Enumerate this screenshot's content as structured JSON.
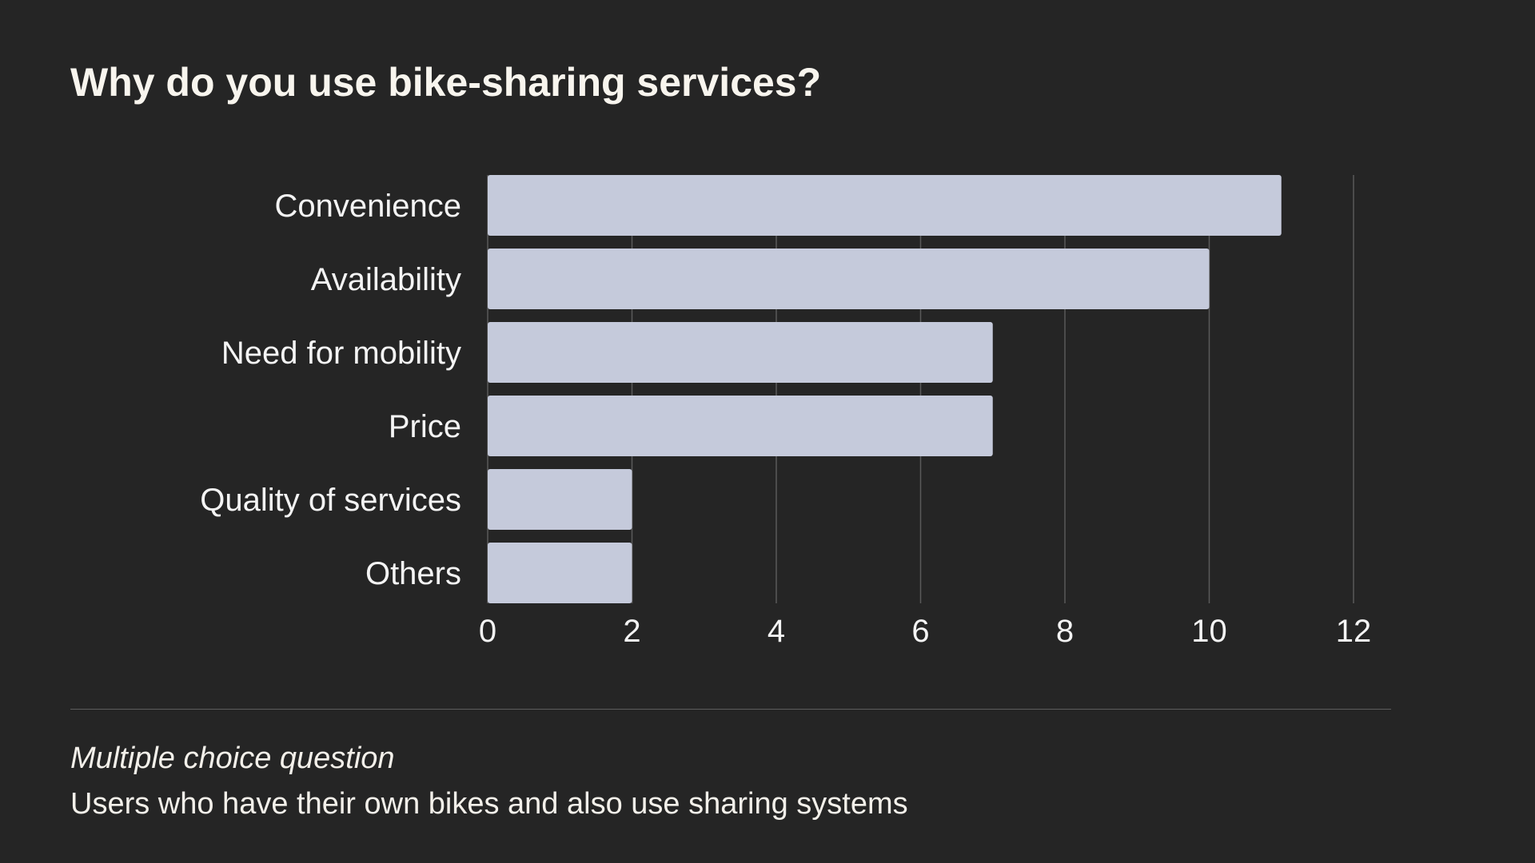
{
  "title": "Why do you use bike-sharing services?",
  "colors": {
    "background": "#252525",
    "bar": "#c5cadb",
    "grid": "#5a5a5a",
    "text": "#f4f4f4"
  },
  "chart_data": {
    "type": "bar",
    "orientation": "horizontal",
    "categories": [
      "Convenience",
      "Availability",
      "Need for mobility",
      "Price",
      "Quality of services",
      "Others"
    ],
    "values": [
      11,
      10,
      7,
      7,
      2,
      2
    ],
    "xlim": [
      0,
      12
    ],
    "xticks": [
      0,
      2,
      4,
      6,
      8,
      10,
      12
    ],
    "xlabel": "",
    "ylabel": "",
    "grid": true
  },
  "footer": {
    "note_italic": "Multiple choice question",
    "note": "Users who have their own bikes and also use sharing systems"
  }
}
